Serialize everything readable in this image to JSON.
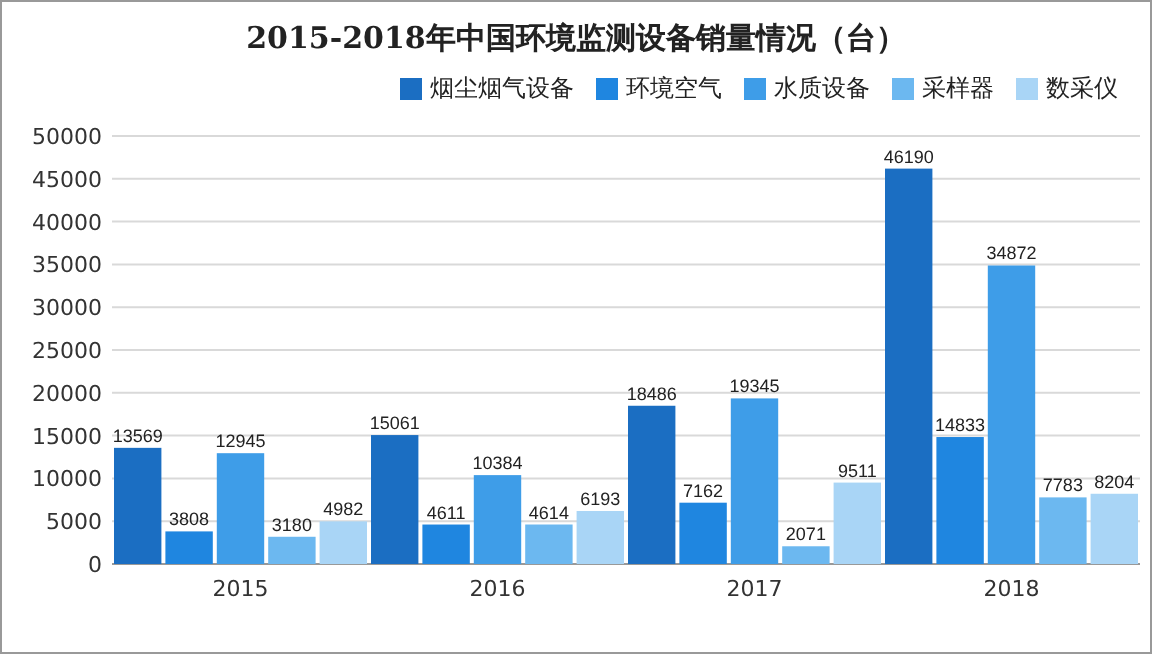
{
  "chart_data": {
    "type": "bar",
    "title": "2015-2018年中国环境监测设备销量情况（台）",
    "categories": [
      "2015",
      "2016",
      "2017",
      "2018"
    ],
    "series": [
      {
        "name": "烟尘烟气设备",
        "color": "#1b6ec2",
        "values": [
          13569,
          15061,
          18486,
          46190
        ]
      },
      {
        "name": "环境空气",
        "color": "#1f86e0",
        "values": [
          3808,
          4611,
          7162,
          14833
        ]
      },
      {
        "name": "水质设备",
        "color": "#3e9de8",
        "values": [
          12945,
          10384,
          19345,
          34872
        ]
      },
      {
        "name": "采样器",
        "color": "#6cb8f0",
        "values": [
          3180,
          4614,
          2071,
          7783
        ]
      },
      {
        "name": "数采仪",
        "color": "#a9d5f6",
        "values": [
          4982,
          6193,
          9511,
          8204
        ]
      }
    ],
    "ylim": [
      0,
      50000
    ],
    "yticks": [
      0,
      5000,
      10000,
      15000,
      20000,
      25000,
      30000,
      35000,
      40000,
      45000,
      50000
    ],
    "grid": "y",
    "legend": "top right",
    "data_labels": true
  }
}
